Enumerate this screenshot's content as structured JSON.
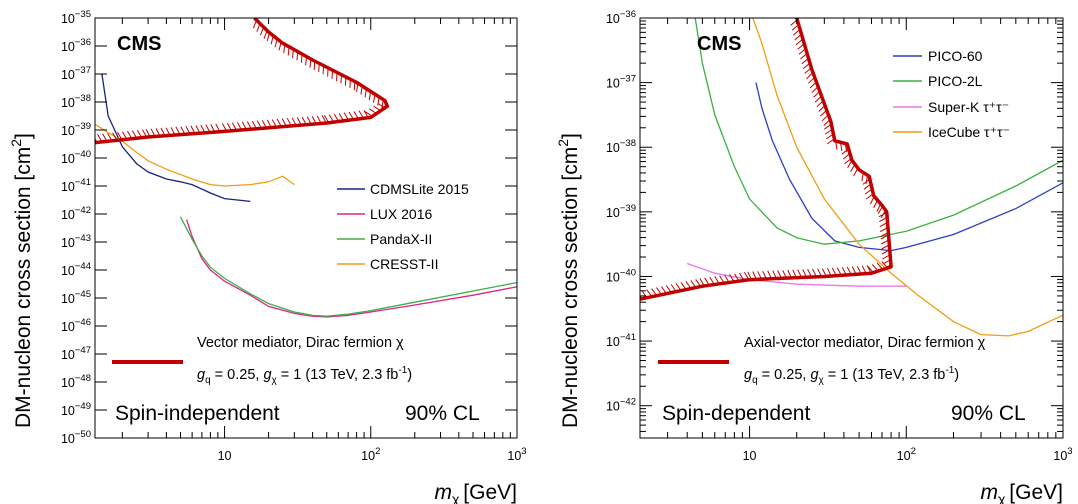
{
  "chart_data": [
    {
      "type": "line",
      "panel": "spin-independent",
      "brand": "CMS",
      "xlabel": "m",
      "xlabel_sub": "χ",
      "xlabel_unit": "[GeV]",
      "ylabel": "DM-nucleon cross section [cm",
      "ylabel_sup": "2",
      "ylabel_end": "]",
      "xlog": true,
      "ylog": true,
      "xlim": [
        1.3,
        1000
      ],
      "ylim_exp": [
        -50,
        -35
      ],
      "x_ticks": [
        {
          "v": 10,
          "label": "10",
          "sup": ""
        },
        {
          "v": 100,
          "label": "10",
          "sup": "2"
        },
        {
          "v": 1000,
          "label": "10",
          "sup": "3"
        }
      ],
      "y_ticks": [
        {
          "e": -35,
          "label": "10",
          "sup": "−35"
        },
        {
          "e": -36,
          "label": "10",
          "sup": "−36"
        },
        {
          "e": -37,
          "label": "10",
          "sup": "−37"
        },
        {
          "e": -38,
          "label": "10",
          "sup": "−38"
        },
        {
          "e": -39,
          "label": "10",
          "sup": "−39"
        },
        {
          "e": -40,
          "label": "10",
          "sup": "−40"
        },
        {
          "e": -41,
          "label": "10",
          "sup": "−41"
        },
        {
          "e": -42,
          "label": "10",
          "sup": "−42"
        },
        {
          "e": -43,
          "label": "10",
          "sup": "−43"
        },
        {
          "e": -44,
          "label": "10",
          "sup": "−44"
        },
        {
          "e": -45,
          "label": "10",
          "sup": "−45"
        },
        {
          "e": -46,
          "label": "10",
          "sup": "−46"
        },
        {
          "e": -47,
          "label": "10",
          "sup": "−47"
        },
        {
          "e": -48,
          "label": "10",
          "sup": "−48"
        },
        {
          "e": -49,
          "label": "10",
          "sup": "−49"
        },
        {
          "e": -50,
          "label": "10",
          "sup": "−50"
        }
      ],
      "series": [
        {
          "name": "CDMSLite 2015",
          "color": "#1a237e",
          "points": [
            [
              1.45,
              -37.0
            ],
            [
              1.6,
              -38.5
            ],
            [
              2.0,
              -39.6
            ],
            [
              2.5,
              -40.2
            ],
            [
              3.0,
              -40.5
            ],
            [
              4.0,
              -40.75
            ],
            [
              5.0,
              -40.85
            ],
            [
              6.0,
              -40.95
            ],
            [
              8.0,
              -41.25
            ],
            [
              10.0,
              -41.45
            ],
            [
              15.0,
              -41.55
            ]
          ]
        },
        {
          "name": "LUX 2016",
          "color": "#e0218a",
          "points": [
            [
              5.5,
              -42.2
            ],
            [
              6.0,
              -42.8
            ],
            [
              7.0,
              -43.6
            ],
            [
              8.0,
              -44.0
            ],
            [
              10.0,
              -44.4
            ],
            [
              15.0,
              -44.9
            ],
            [
              20.0,
              -45.3
            ],
            [
              30.0,
              -45.55
            ],
            [
              40.0,
              -45.65
            ],
            [
              50.0,
              -45.68
            ],
            [
              70.0,
              -45.62
            ],
            [
              100.0,
              -45.5
            ],
            [
              200.0,
              -45.25
            ],
            [
              500.0,
              -44.9
            ],
            [
              1000.0,
              -44.6
            ]
          ]
        },
        {
          "name": "PandaX-II",
          "color": "#3cb043",
          "points": [
            [
              5.0,
              -42.1
            ],
            [
              6.0,
              -42.9
            ],
            [
              7.0,
              -43.5
            ],
            [
              8.0,
              -43.9
            ],
            [
              10.0,
              -44.3
            ],
            [
              15.0,
              -44.85
            ],
            [
              20.0,
              -45.2
            ],
            [
              30.0,
              -45.5
            ],
            [
              40.0,
              -45.62
            ],
            [
              50.0,
              -45.65
            ],
            [
              70.0,
              -45.58
            ],
            [
              100.0,
              -45.45
            ],
            [
              200.0,
              -45.15
            ],
            [
              500.0,
              -44.75
            ],
            [
              1000.0,
              -44.45
            ]
          ]
        },
        {
          "name": "CRESST-II",
          "color": "#f39c12",
          "points": [
            [
              1.3,
              -38.8
            ],
            [
              2.0,
              -39.4
            ],
            [
              2.5,
              -39.8
            ],
            [
              3.0,
              -40.1
            ],
            [
              4.0,
              -40.4
            ],
            [
              6.0,
              -40.75
            ],
            [
              8.0,
              -40.95
            ],
            [
              10.0,
              -41.0
            ],
            [
              15.0,
              -40.95
            ],
            [
              20.0,
              -40.85
            ],
            [
              25.0,
              -40.65
            ],
            [
              30.0,
              -40.95
            ]
          ]
        }
      ],
      "observed": {
        "color": "#c00000",
        "points": [
          [
            1.3,
            -39.45
          ],
          [
            3.0,
            -39.25
          ],
          [
            10.0,
            -39.05
          ],
          [
            50.0,
            -38.75
          ],
          [
            100.0,
            -38.55
          ],
          [
            130.0,
            -38.15
          ],
          [
            125.0,
            -37.95
          ],
          [
            80.0,
            -37.3
          ],
          [
            40.0,
            -36.5
          ],
          [
            25.0,
            -35.9
          ],
          [
            20.0,
            -35.5
          ],
          [
            16.0,
            -35.0
          ]
        ]
      },
      "legend_entries": [
        "CDMSLite 2015",
        "LUX 2016",
        "PandaX-II",
        "CRESST-II"
      ],
      "legend_position": "right",
      "mediator_label": "Vector mediator, Dirac fermion χ",
      "coupling_label": {
        "gq": "g",
        "gq_sub": "q",
        "gq_val": " = 0.25, ",
        "gchi": "g",
        "gchi_sub": "χ",
        "gchi_val": " = 1 (13 TeV, 2.3 fb",
        "sup": "-1",
        "close": ")"
      },
      "panel_label": "Spin-independent",
      "cl_label": "90% CL"
    },
    {
      "type": "line",
      "panel": "spin-dependent",
      "brand": "CMS",
      "xlabel": "m",
      "xlabel_sub": "χ",
      "xlabel_unit": "[GeV]",
      "ylabel": "DM-nucleon cross section [cm",
      "ylabel_sup": "2",
      "ylabel_end": "]",
      "xlog": true,
      "ylog": true,
      "xlim": [
        2,
        1000
      ],
      "ylim_exp": [
        -42.5,
        -36
      ],
      "x_ticks": [
        {
          "v": 10,
          "label": "10",
          "sup": ""
        },
        {
          "v": 100,
          "label": "10",
          "sup": "2"
        },
        {
          "v": 1000,
          "label": "10",
          "sup": "3"
        }
      ],
      "y_ticks": [
        {
          "e": -36,
          "label": "10",
          "sup": "−36"
        },
        {
          "e": -37,
          "label": "10",
          "sup": "−37"
        },
        {
          "e": -38,
          "label": "10",
          "sup": "−38"
        },
        {
          "e": -39,
          "label": "10",
          "sup": "−39"
        },
        {
          "e": -40,
          "label": "10",
          "sup": "−40"
        },
        {
          "e": -41,
          "label": "10",
          "sup": "−41"
        },
        {
          "e": -42,
          "label": "10",
          "sup": "−42"
        }
      ],
      "series": [
        {
          "name": "PICO-60",
          "color": "#2a3fbf",
          "points": [
            [
              11.0,
              -37.0
            ],
            [
              12.0,
              -37.4
            ],
            [
              14.0,
              -37.9
            ],
            [
              18.0,
              -38.5
            ],
            [
              25.0,
              -39.1
            ],
            [
              35.0,
              -39.45
            ],
            [
              50.0,
              -39.55
            ],
            [
              80.0,
              -39.6
            ],
            [
              100.0,
              -39.55
            ],
            [
              200.0,
              -39.35
            ],
            [
              500.0,
              -38.95
            ],
            [
              1000.0,
              -38.55
            ]
          ]
        },
        {
          "name": "PICO-2L",
          "color": "#3cb043",
          "points": [
            [
              4.5,
              -36.0
            ],
            [
              5.0,
              -36.7
            ],
            [
              6.0,
              -37.5
            ],
            [
              8.0,
              -38.3
            ],
            [
              10.0,
              -38.8
            ],
            [
              15.0,
              -39.25
            ],
            [
              20.0,
              -39.4
            ],
            [
              30.0,
              -39.5
            ],
            [
              50.0,
              -39.45
            ],
            [
              100.0,
              -39.3
            ],
            [
              200.0,
              -39.05
            ],
            [
              500.0,
              -38.6
            ],
            [
              1000.0,
              -38.2
            ]
          ]
        },
        {
          "name": "Super-K τ⁺τ⁻",
          "color": "#e879e6",
          "points": [
            [
              4.0,
              -39.8
            ],
            [
              6.0,
              -39.95
            ],
            [
              10.0,
              -40.05
            ],
            [
              20.0,
              -40.12
            ],
            [
              50.0,
              -40.15
            ],
            [
              100.0,
              -40.15
            ]
          ]
        },
        {
          "name": "IceCube τ⁺τ⁻",
          "color": "#f39c12",
          "points": [
            [
              10.5,
              -36.0
            ],
            [
              12.0,
              -36.4
            ],
            [
              15.0,
              -37.2
            ],
            [
              20.0,
              -38.0
            ],
            [
              30.0,
              -38.8
            ],
            [
              50.0,
              -39.5
            ],
            [
              80.0,
              -39.95
            ],
            [
              120.0,
              -40.3
            ],
            [
              200.0,
              -40.7
            ],
            [
              300.0,
              -40.9
            ],
            [
              450.0,
              -40.92
            ],
            [
              600.0,
              -40.85
            ],
            [
              1000.0,
              -40.6
            ]
          ]
        }
      ],
      "observed": {
        "color": "#c00000",
        "points": [
          [
            2.0,
            -40.35
          ],
          [
            5.0,
            -40.15
          ],
          [
            10.0,
            -40.05
          ],
          [
            30.0,
            -40.0
          ],
          [
            60.0,
            -39.95
          ],
          [
            80.0,
            -39.85
          ],
          [
            77.0,
            -39.35
          ],
          [
            75.0,
            -39.0
          ],
          [
            70.0,
            -38.9
          ],
          [
            62.0,
            -38.75
          ],
          [
            58.0,
            -38.45
          ],
          [
            50.0,
            -38.35
          ],
          [
            45.0,
            -38.2
          ],
          [
            42.0,
            -37.95
          ],
          [
            35.0,
            -37.9
          ],
          [
            33.0,
            -37.6
          ],
          [
            25.0,
            -36.8
          ],
          [
            20.0,
            -36.0
          ]
        ]
      },
      "legend_entries": [
        "PICO-60",
        "PICO-2L",
        "Super-K τ⁺τ⁻",
        "IceCube τ⁺τ⁻"
      ],
      "legend_position": "top-right",
      "mediator_label": "Axial-vector mediator, Dirac fermion χ",
      "coupling_label": {
        "gq": "g",
        "gq_sub": "q",
        "gq_val": " = 0.25, ",
        "gchi": "g",
        "gchi_sub": "χ",
        "gchi_val": " = 1 (13 TeV, 2.3 fb",
        "sup": "-1",
        "close": ")"
      },
      "panel_label": "Spin-dependent",
      "cl_label": "90% CL"
    }
  ]
}
